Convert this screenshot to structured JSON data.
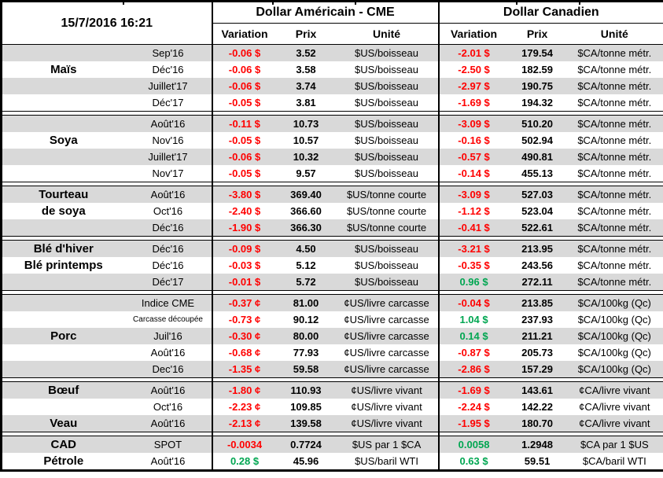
{
  "header": {
    "datetime": "15/7/2016 16:21",
    "us_title": "Dollar Américain - CME",
    "ca_title": "Dollar Canadien",
    "variation_label": "Variation",
    "price_label": "Prix",
    "unit_label": "Unité"
  },
  "colors": {
    "negative": "#FF0000",
    "positive": "#00A651",
    "row_stripe": "#D9D9D9",
    "border": "#000000"
  },
  "sections": [
    {
      "rows": [
        {
          "category": "",
          "month": "Sep'16",
          "us_variation": "-0.06 $",
          "us_price": "3.52",
          "us_unit": "$US/boisseau",
          "ca_variation": "-2.01 $",
          "ca_price": "179.54",
          "ca_unit": "$CA/tonne métr."
        },
        {
          "category": "Maïs",
          "month": "Déc'16",
          "us_variation": "-0.06 $",
          "us_price": "3.58",
          "us_unit": "$US/boisseau",
          "ca_variation": "-2.50 $",
          "ca_price": "182.59",
          "ca_unit": "$CA/tonne métr."
        },
        {
          "category": "",
          "month": "Juillet'17",
          "us_variation": "-0.06 $",
          "us_price": "3.74",
          "us_unit": "$US/boisseau",
          "ca_variation": "-2.97 $",
          "ca_price": "190.75",
          "ca_unit": "$CA/tonne métr."
        },
        {
          "category": "",
          "month": "Déc'17",
          "us_variation": "-0.05 $",
          "us_price": "3.81",
          "us_unit": "$US/boisseau",
          "ca_variation": "-1.69 $",
          "ca_price": "194.32",
          "ca_unit": "$CA/tonne métr."
        }
      ]
    },
    {
      "rows": [
        {
          "category": "",
          "month": "Août'16",
          "us_variation": "-0.11 $",
          "us_price": "10.73",
          "us_unit": "$US/boisseau",
          "ca_variation": "-3.09 $",
          "ca_price": "510.20",
          "ca_unit": "$CA/tonne métr."
        },
        {
          "category": "Soya",
          "month": "Nov'16",
          "us_variation": "-0.05 $",
          "us_price": "10.57",
          "us_unit": "$US/boisseau",
          "ca_variation": "-0.16 $",
          "ca_price": "502.94",
          "ca_unit": "$CA/tonne métr."
        },
        {
          "category": "",
          "month": "Juillet'17",
          "us_variation": "-0.06 $",
          "us_price": "10.32",
          "us_unit": "$US/boisseau",
          "ca_variation": "-0.57 $",
          "ca_price": "490.81",
          "ca_unit": "$CA/tonne métr."
        },
        {
          "category": "",
          "month": "Nov'17",
          "us_variation": "-0.05 $",
          "us_price": "9.57",
          "us_unit": "$US/boisseau",
          "ca_variation": "-0.14 $",
          "ca_price": "455.13",
          "ca_unit": "$CA/tonne métr."
        }
      ]
    },
    {
      "rows": [
        {
          "category": "Tourteau",
          "month": "Août'16",
          "us_variation": "-3.80 $",
          "us_price": "369.40",
          "us_unit": "$US/tonne courte",
          "ca_variation": "-3.09 $",
          "ca_price": "527.03",
          "ca_unit": "$CA/tonne métr."
        },
        {
          "category": "de soya",
          "month": "Oct'16",
          "us_variation": "-2.40 $",
          "us_price": "366.60",
          "us_unit": "$US/tonne courte",
          "ca_variation": "-1.12 $",
          "ca_price": "523.04",
          "ca_unit": "$CA/tonne métr."
        },
        {
          "category": "",
          "month": "Déc'16",
          "us_variation": "-1.90 $",
          "us_price": "366.30",
          "us_unit": "$US/tonne courte",
          "ca_variation": "-0.41 $",
          "ca_price": "522.61",
          "ca_unit": "$CA/tonne métr."
        }
      ]
    },
    {
      "rows": [
        {
          "category": "Blé d'hiver",
          "month": "Déc'16",
          "us_variation": "-0.09 $",
          "us_price": "4.50",
          "us_unit": "$US/boisseau",
          "ca_variation": "-3.21 $",
          "ca_price": "213.95",
          "ca_unit": "$CA/tonne métr."
        },
        {
          "category": "Blé printemps",
          "month": "Déc'16",
          "us_variation": "-0.03 $",
          "us_price": "5.12",
          "us_unit": "$US/boisseau",
          "ca_variation": "-0.35 $",
          "ca_price": "243.56",
          "ca_unit": "$CA/tonne métr."
        },
        {
          "category": "",
          "month": "Déc'17",
          "us_variation": "-0.01 $",
          "us_price": "5.72",
          "us_unit": "$US/boisseau",
          "ca_variation": "0.96 $",
          "ca_price": "272.11",
          "ca_unit": "$CA/tonne métr."
        }
      ]
    },
    {
      "rows": [
        {
          "category": "",
          "month": "Indice CME",
          "us_variation": "-0.37 ¢",
          "us_price": "81.00",
          "us_unit": "¢US/livre carcasse",
          "ca_variation": "-0.04 $",
          "ca_price": "213.85",
          "ca_unit": "$CA/100kg (Qc)"
        },
        {
          "category": "",
          "month": "Carcasse découpée",
          "month_small": true,
          "us_variation": "-0.73 ¢",
          "us_price": "90.12",
          "us_unit": "¢US/livre carcasse",
          "ca_variation": "1.04 $",
          "ca_price": "237.93",
          "ca_unit": "$CA/100kg (Qc)"
        },
        {
          "category": "Porc",
          "month": "Juil'16",
          "us_variation": "-0.30 ¢",
          "us_price": "80.00",
          "us_unit": "¢US/livre carcasse",
          "ca_variation": "0.14 $",
          "ca_price": "211.21",
          "ca_unit": "$CA/100kg (Qc)"
        },
        {
          "category": "",
          "month": "Août'16",
          "us_variation": "-0.68 ¢",
          "us_price": "77.93",
          "us_unit": "¢US/livre carcasse",
          "ca_variation": "-0.87 $",
          "ca_price": "205.73",
          "ca_unit": "$CA/100kg (Qc)"
        },
        {
          "category": "",
          "month": "Dec'16",
          "us_variation": "-1.35 ¢",
          "us_price": "59.58",
          "us_unit": "¢US/livre carcasse",
          "ca_variation": "-2.86 $",
          "ca_price": "157.29",
          "ca_unit": "$CA/100kg (Qc)"
        }
      ]
    },
    {
      "rows": [
        {
          "category": "Bœuf",
          "month": "Août'16",
          "us_variation": "-1.80 ¢",
          "us_price": "110.93",
          "us_unit": "¢US/livre vivant",
          "ca_variation": "-1.69 $",
          "ca_price": "143.61",
          "ca_unit": "¢CA/livre vivant"
        },
        {
          "category": "",
          "month": "Oct'16",
          "us_variation": "-2.23 ¢",
          "us_price": "109.85",
          "us_unit": "¢US/livre vivant",
          "ca_variation": "-2.24 $",
          "ca_price": "142.22",
          "ca_unit": "¢CA/livre vivant"
        },
        {
          "category": "Veau",
          "month": "Août'16",
          "us_variation": "-2.13 ¢",
          "us_price": "139.58",
          "us_unit": "¢US/livre vivant",
          "ca_variation": "-1.95 $",
          "ca_price": "180.70",
          "ca_unit": "¢CA/livre vivant"
        }
      ]
    },
    {
      "rows": [
        {
          "category": "CAD",
          "month": "SPOT",
          "us_variation": "-0.0034",
          "us_price": "0.7724",
          "us_unit": "$US par 1 $CA",
          "ca_variation": "0.0058",
          "ca_price": "1.2948",
          "ca_unit": "$CA par 1 $US"
        },
        {
          "category": "Pétrole",
          "month": "Août'16",
          "us_variation": "0.28 $",
          "us_price": "45.96",
          "us_unit": "$US/baril WTI",
          "ca_variation": "0.63 $",
          "ca_price": "59.51",
          "ca_unit": "$CA/baril WTI"
        }
      ]
    }
  ]
}
